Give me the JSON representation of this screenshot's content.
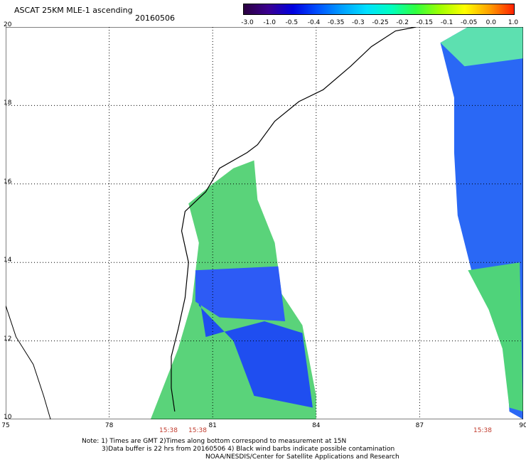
{
  "header": {
    "title": "ASCAT 25KM MLE-1 ascending",
    "date": "20160506"
  },
  "colorbar": {
    "ticks": [
      "-3.0",
      "-1.0",
      "-0.5",
      "-0.4",
      "-0.35",
      "-0.3",
      "-0.25",
      "-0.2",
      "-0.15",
      "-0.1",
      "-0.05",
      "0.0",
      "1.0"
    ],
    "colors": [
      "#2b0040",
      "#3b0090",
      "#0000e0",
      "#0050ff",
      "#00a0ff",
      "#00e0ff",
      "#00ffc0",
      "#30ff40",
      "#a0ff00",
      "#ffff00",
      "#ffa000",
      "#ff2000"
    ]
  },
  "map": {
    "lon_labels": [
      "75",
      "78",
      "81",
      "84",
      "87",
      "90"
    ],
    "lat_labels": [
      "20",
      "18",
      "16",
      "14",
      "12",
      "10"
    ],
    "lon_range": [
      75,
      90
    ],
    "lat_range": [
      10,
      20
    ],
    "grid": true,
    "pass_times": [
      "15:38",
      "15:38",
      "15:38"
    ]
  },
  "footer": {
    "line1": "Note: 1) Times are GMT 2)Times along bottom correspond to measurement at 15N",
    "line2": "3)Data buffer is 22 hrs from 20160506 4) Black wind barbs indicate possible contamination",
    "line3": "NOAA/NESDIS/Center for Satellite Applications and Research"
  }
}
